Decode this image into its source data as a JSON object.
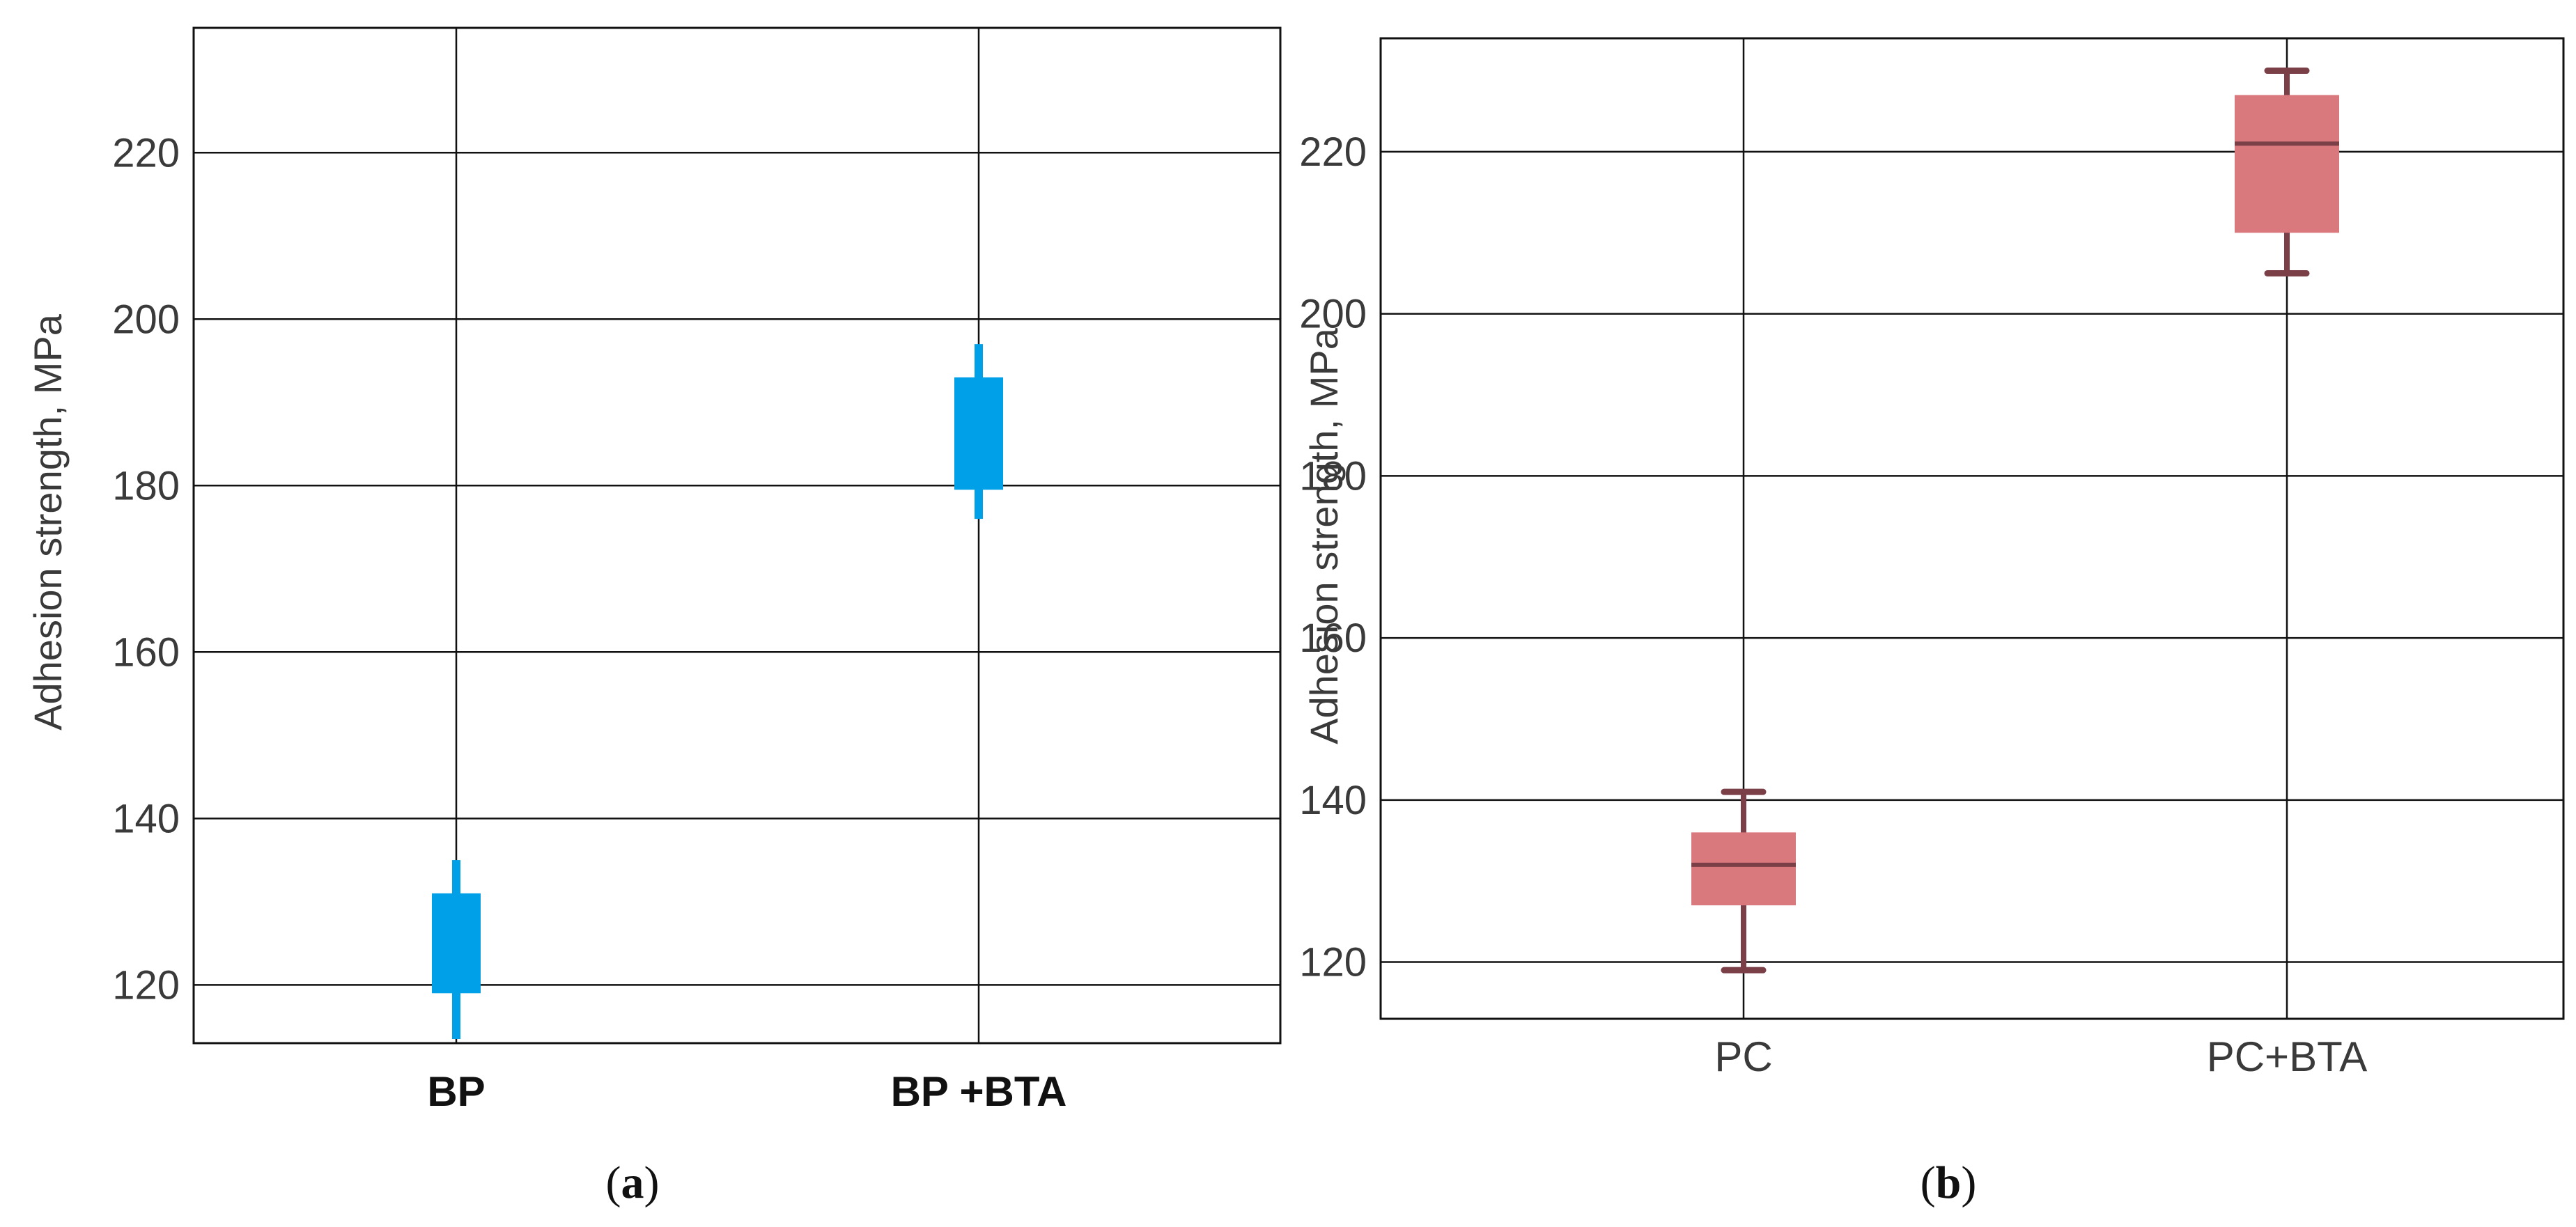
{
  "chart_data": [
    {
      "type": "box",
      "panel": "a",
      "caption_open": "(",
      "caption_letter": "a",
      "caption_close": ")",
      "ylabel": "Adhesion strength, MPa",
      "xlabel": "",
      "ylim": [
        113,
        235
      ],
      "yticks": [
        120,
        140,
        160,
        180,
        200,
        220
      ],
      "grid": true,
      "box_color": "#00A0E8",
      "categories": [
        "BP",
        "BP +BTA"
      ],
      "boxes": [
        {
          "name": "BP",
          "min": 113.5,
          "q1": 119,
          "median": 125,
          "q3": 131,
          "max": 135
        },
        {
          "name": "BP +BTA",
          "min": 176,
          "q1": 179.5,
          "median": 186,
          "q3": 193,
          "max": 197
        }
      ]
    },
    {
      "type": "box",
      "panel": "b",
      "caption_open": "(",
      "caption_letter": "b",
      "caption_close": ")",
      "ylabel": "Adhesion strength, MPa",
      "xlabel": "",
      "ylim": [
        113,
        234
      ],
      "yticks": [
        120,
        140,
        160,
        180,
        200,
        220
      ],
      "grid": true,
      "box_color": "#D9787D",
      "whisker_color": "#7A3F47",
      "categories": [
        "PC",
        "PC+BTA"
      ],
      "boxes": [
        {
          "name": "PC",
          "min": 119,
          "q1": 127,
          "median": 132,
          "q3": 136,
          "max": 141
        },
        {
          "name": "PC+BTA",
          "min": 205,
          "q1": 210,
          "median": 221,
          "q3": 227,
          "max": 230
        }
      ]
    }
  ]
}
